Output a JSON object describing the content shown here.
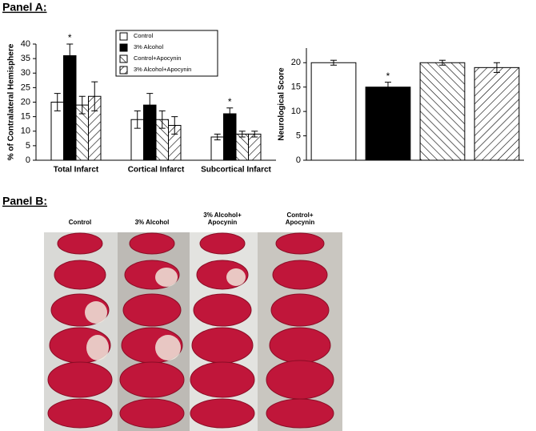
{
  "panel_a_label": "Panel A:",
  "panel_b": {
    "label": "Panel B:",
    "columns": [
      [
        "Control"
      ],
      [
        "3% Alcohol"
      ],
      [
        "3% Alcohol+",
        "Apocynin"
      ],
      [
        "Control+",
        "Apocynin"
      ]
    ]
  },
  "chart_data": [
    {
      "type": "bar",
      "y_label": "% of Contralateral Hemisphere",
      "categories": [
        "Total Infarct",
        "Cortical Infarct",
        "Subcortical Infarct"
      ],
      "series": [
        {
          "name": "Control",
          "color": "white",
          "values": [
            20,
            14,
            8
          ],
          "errors": [
            3,
            3,
            1
          ]
        },
        {
          "name": "3% Alcohol",
          "color": "black",
          "values": [
            36,
            19,
            16
          ],
          "errors": [
            4,
            4,
            2
          ],
          "significance": [
            "*",
            null,
            "*"
          ]
        },
        {
          "name": "Control+Apocynin",
          "color": "white",
          "hatch": "back",
          "values": [
            19,
            14,
            9
          ],
          "errors": [
            3,
            3,
            1
          ]
        },
        {
          "name": "3% Alcohol+Apocynin",
          "color": "white",
          "hatch": "forward",
          "values": [
            22,
            12,
            9
          ],
          "errors": [
            5,
            3,
            1
          ]
        }
      ],
      "ylim": [
        0,
        40
      ],
      "yticks": [
        0,
        5,
        10,
        15,
        20,
        25,
        30,
        35,
        40
      ],
      "legend": "top-right"
    },
    {
      "type": "bar",
      "y_label": "Neurological Score",
      "categories": [
        null,
        null,
        null,
        null
      ],
      "values": [
        20,
        15,
        20,
        19
      ],
      "errors": [
        0.5,
        1,
        0.5,
        1
      ],
      "colors": [
        "white",
        "black",
        "white",
        "white"
      ],
      "hatches": [
        null,
        null,
        "back",
        "forward"
      ],
      "significance": [
        null,
        "*",
        null,
        null
      ],
      "ylim": [
        0,
        23
      ],
      "yticks": [
        0,
        5,
        10,
        15,
        20
      ]
    }
  ]
}
